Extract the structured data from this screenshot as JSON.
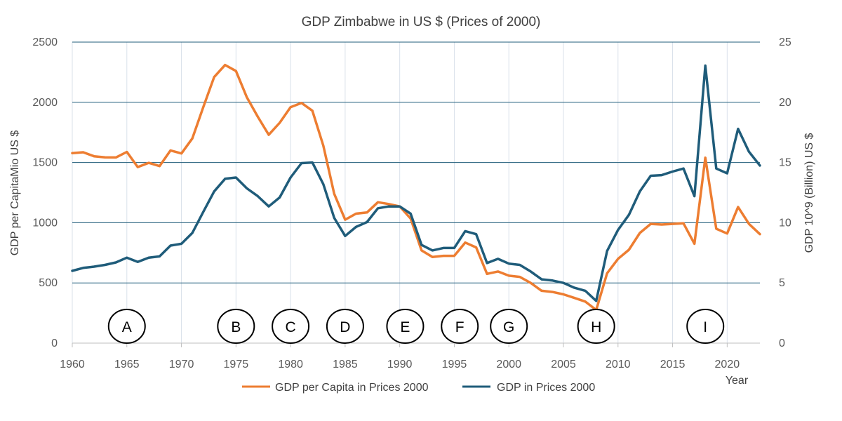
{
  "chart_data": {
    "type": "line",
    "title": "GDP Zimbabwe in US $ (Prices of 2000)",
    "xlabel": "Year",
    "ylabel": "GDP per CapitaMio US $",
    "y2label": "GDP 10^9 (Billion) US $",
    "xlim": [
      1960,
      2023
    ],
    "ylim": [
      0,
      2500
    ],
    "y2lim": [
      0,
      25
    ],
    "x_ticks": [
      1960,
      1965,
      1970,
      1975,
      1980,
      1985,
      1990,
      1995,
      2000,
      2005,
      2010,
      2015,
      2020
    ],
    "y_ticks": [
      0,
      500,
      1000,
      1500,
      2000,
      2500
    ],
    "y2_ticks": [
      0,
      5,
      10,
      15,
      20,
      25
    ],
    "legend_position": "bottom",
    "x": [
      1960,
      1961,
      1962,
      1963,
      1964,
      1965,
      1966,
      1967,
      1968,
      1969,
      1970,
      1971,
      1972,
      1973,
      1974,
      1975,
      1976,
      1977,
      1978,
      1979,
      1980,
      1981,
      1982,
      1983,
      1984,
      1985,
      1986,
      1987,
      1988,
      1989,
      1990,
      1991,
      1992,
      1993,
      1994,
      1995,
      1996,
      1997,
      1998,
      1999,
      2000,
      2001,
      2002,
      2003,
      2004,
      2005,
      2006,
      2007,
      2008,
      2009,
      2010,
      2011,
      2012,
      2013,
      2014,
      2015,
      2016,
      2017,
      2018,
      2019,
      2020,
      2021,
      2022,
      2023
    ],
    "series": [
      {
        "name": "GDP per Capita in Prices 2000",
        "axis": "left",
        "color": "#ED7D31",
        "values": [
          1578,
          1585,
          1552,
          1543,
          1542,
          1588,
          1462,
          1497,
          1470,
          1600,
          1575,
          1700,
          1960,
          2210,
          2310,
          2260,
          2040,
          1880,
          1730,
          1830,
          1960,
          1995,
          1930,
          1640,
          1240,
          1025,
          1075,
          1085,
          1170,
          1155,
          1135,
          1035,
          770,
          715,
          725,
          725,
          835,
          795,
          575,
          595,
          560,
          550,
          500,
          435,
          425,
          405,
          375,
          345,
          275,
          580,
          700,
          775,
          915,
          990,
          985,
          990,
          995,
          825,
          1540,
          950,
          910,
          1130,
          990,
          905
        ]
      },
      {
        "name": "GDP in Prices 2000",
        "axis": "right",
        "color": "#1F5C7A",
        "values": [
          6.0,
          6.25,
          6.35,
          6.5,
          6.7,
          7.1,
          6.75,
          7.1,
          7.2,
          8.1,
          8.25,
          9.15,
          10.9,
          12.6,
          13.65,
          13.75,
          12.85,
          12.2,
          11.35,
          12.1,
          13.75,
          14.95,
          15.0,
          13.2,
          10.4,
          8.9,
          9.65,
          10.05,
          11.2,
          11.35,
          11.35,
          10.75,
          8.15,
          7.7,
          7.9,
          7.9,
          9.3,
          9.05,
          6.65,
          7.0,
          6.6,
          6.5,
          5.95,
          5.3,
          5.2,
          5.0,
          4.6,
          4.35,
          3.5,
          7.65,
          9.4,
          10.65,
          12.6,
          13.9,
          13.95,
          14.25,
          14.5,
          12.2,
          23.05,
          14.5,
          14.1,
          17.8,
          15.9,
          14.75
        ]
      }
    ],
    "annotations": [
      {
        "label": "A",
        "x": 1965
      },
      {
        "label": "B",
        "x": 1975
      },
      {
        "label": "C",
        "x": 1980
      },
      {
        "label": "D",
        "x": 1985
      },
      {
        "label": "E",
        "x": 1990.5
      },
      {
        "label": "F",
        "x": 1995.5
      },
      {
        "label": "G",
        "x": 2000
      },
      {
        "label": "H",
        "x": 2008
      },
      {
        "label": "I",
        "x": 2018
      }
    ]
  }
}
